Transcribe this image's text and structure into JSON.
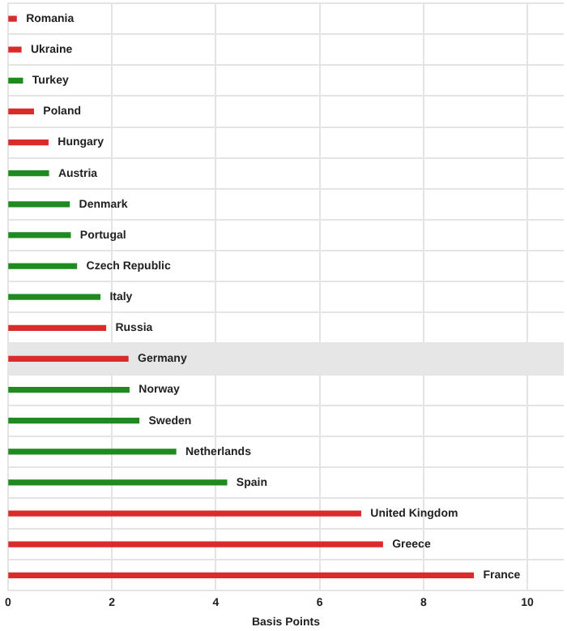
{
  "chart_data": {
    "type": "bar",
    "orientation": "horizontal",
    "xlabel": "Basis Points",
    "categories": [
      "Romania",
      "Ukraine",
      "Turkey",
      "Poland",
      "Hungary",
      "Austria",
      "Denmark",
      "Portugal",
      "Czech Republic",
      "Italy",
      "Russia",
      "Germany",
      "Norway",
      "Sweden",
      "Netherlands",
      "Spain",
      "United Kingdom",
      "Greece",
      "France"
    ],
    "values": [
      0.16,
      0.25,
      0.28,
      0.49,
      0.77,
      0.78,
      1.18,
      1.2,
      1.32,
      1.77,
      1.88,
      2.31,
      2.33,
      2.52,
      3.23,
      4.21,
      6.79,
      7.21,
      8.96
    ],
    "colors": [
      "#d92b2b",
      "#d92b2b",
      "#1f8a1f",
      "#d92b2b",
      "#d92b2b",
      "#1f8a1f",
      "#1f8a1f",
      "#1f8a1f",
      "#1f8a1f",
      "#1f8a1f",
      "#d92b2b",
      "#d92b2b",
      "#1f8a1f",
      "#1f8a1f",
      "#1f8a1f",
      "#1f8a1f",
      "#d92b2b",
      "#d92b2b",
      "#d92b2b"
    ],
    "xlim": [
      0,
      10.7
    ],
    "xticks": [
      0,
      2,
      4,
      6,
      8,
      10
    ],
    "bands": [
      {
        "axis": "y",
        "from": "Germany",
        "to": "Germany",
        "color": "#e6e6e6"
      }
    ],
    "grid": true,
    "tick_labels": "x"
  }
}
